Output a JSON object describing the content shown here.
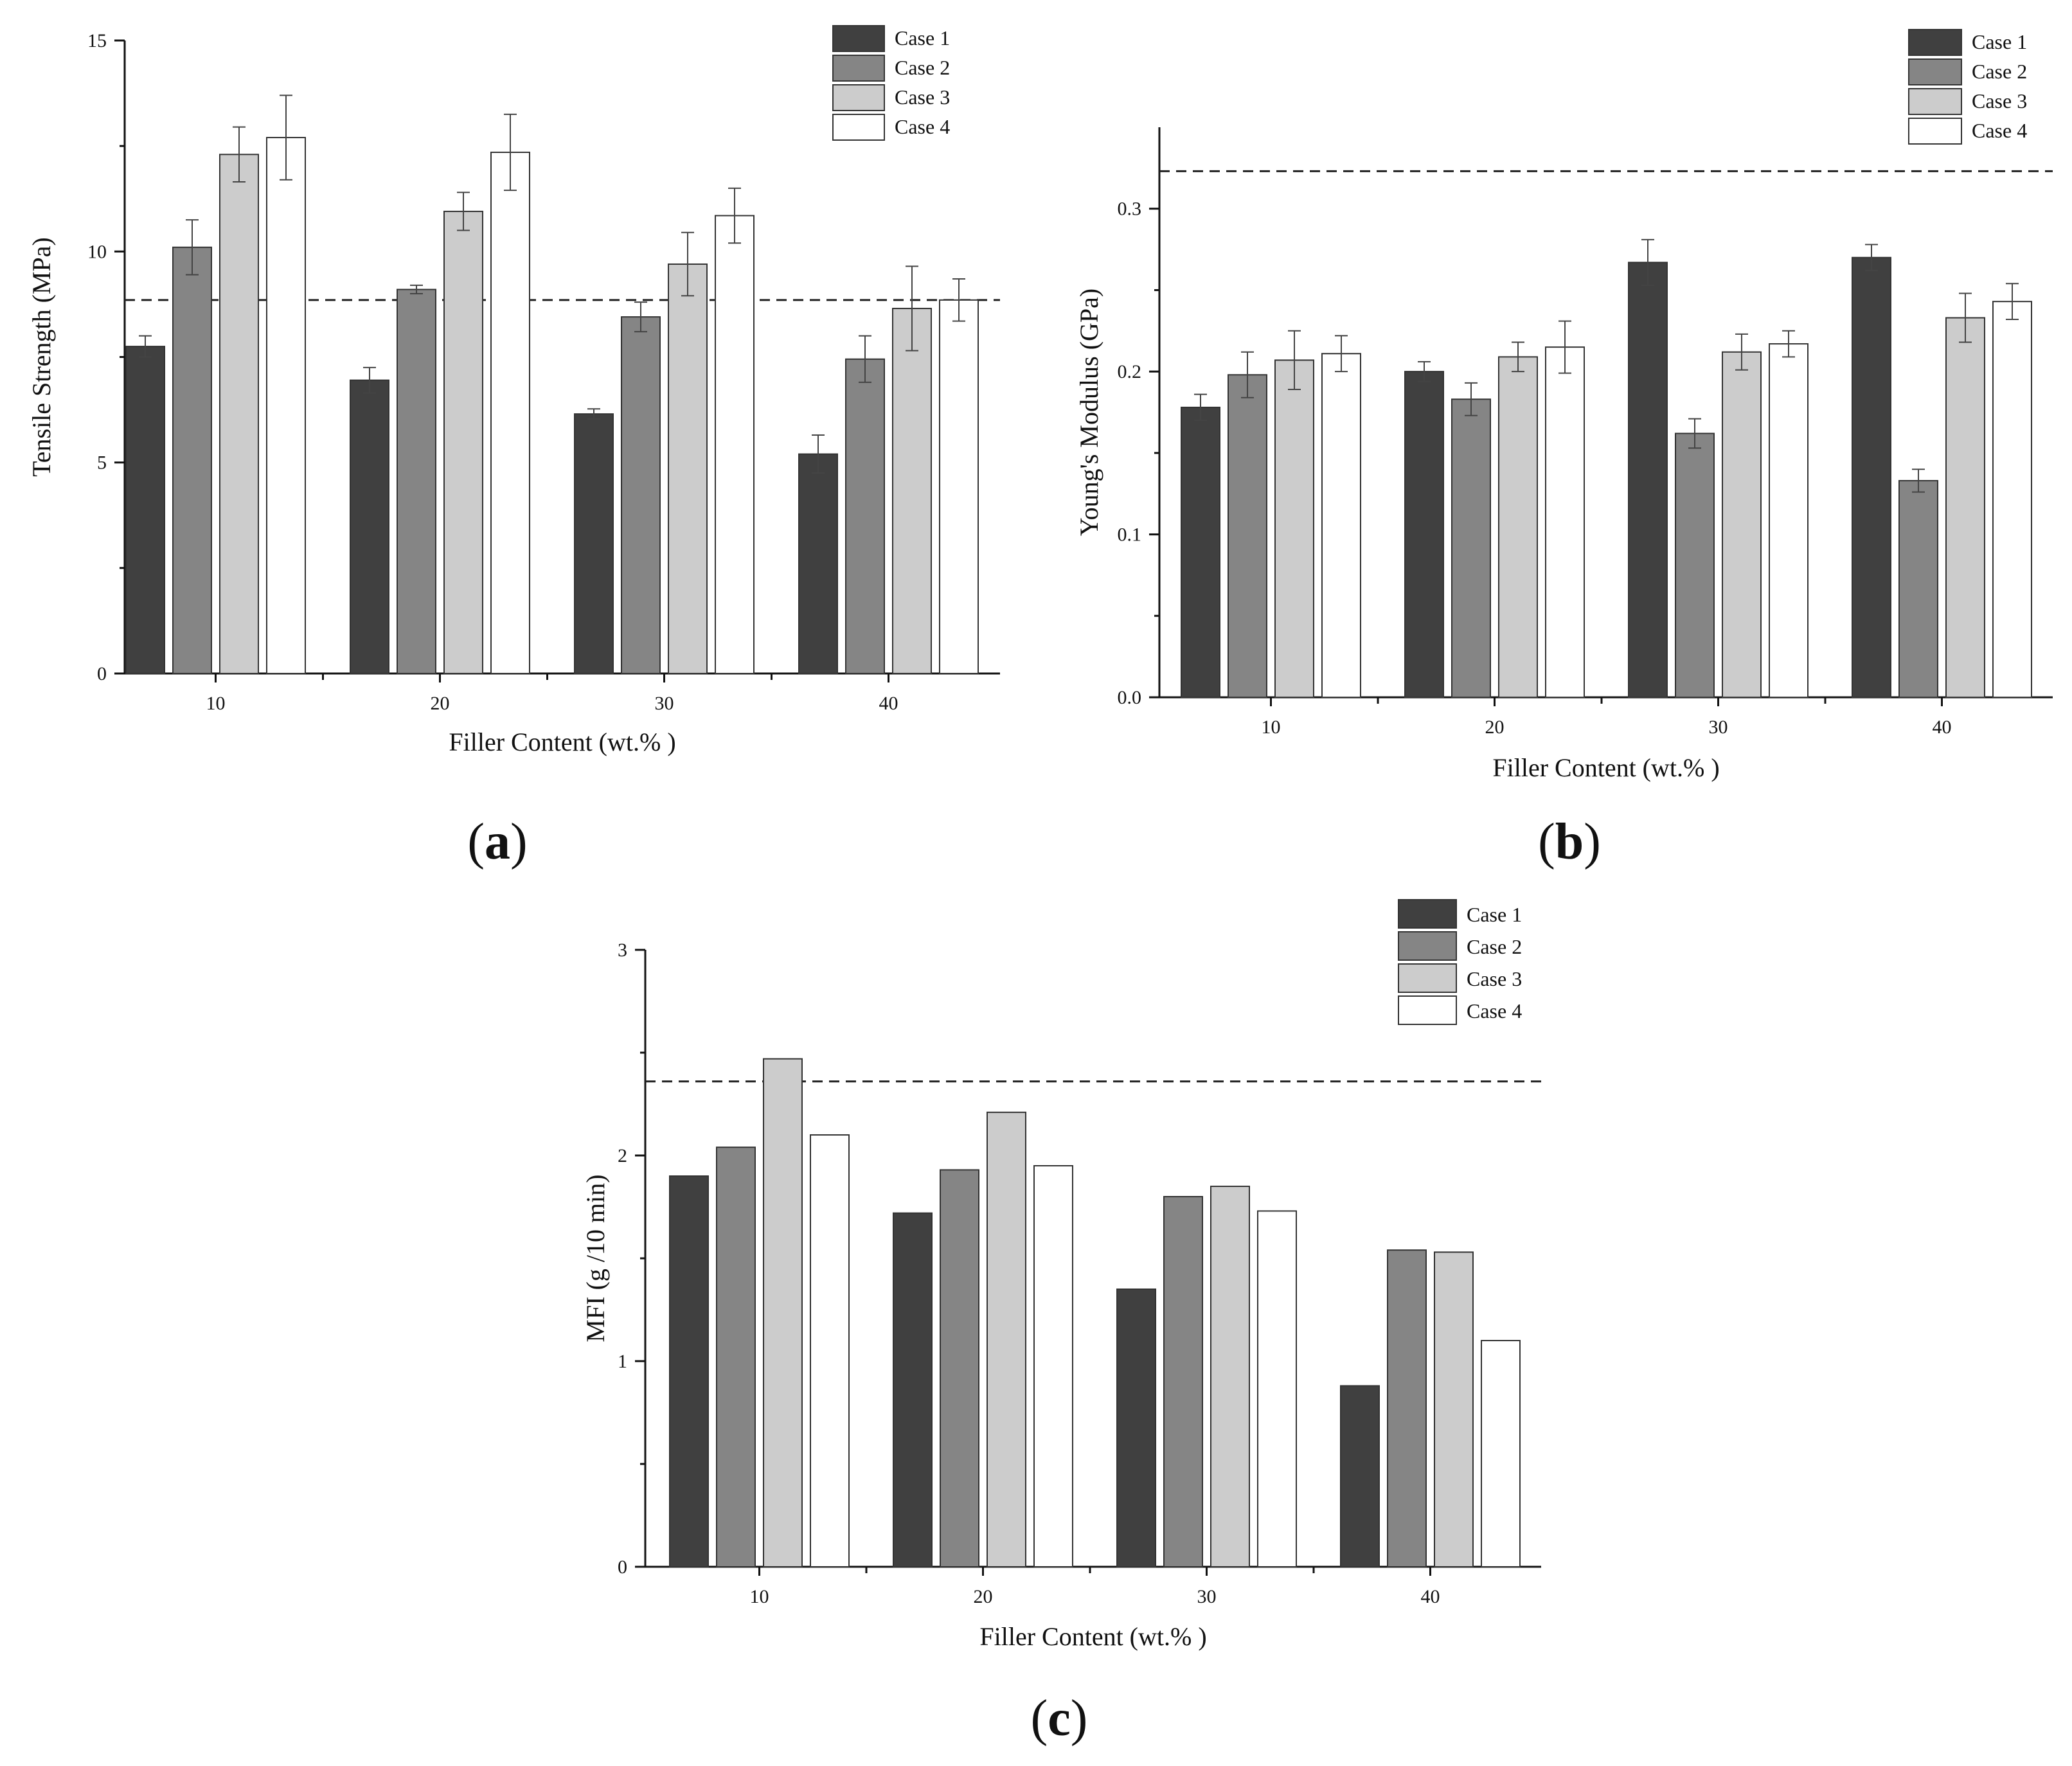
{
  "legend_labels": [
    "Case 1",
    "Case 2",
    "Case 3",
    "Case 4"
  ],
  "colors": {
    "case1": "#404040",
    "case2": "#858585",
    "case3": "#cccccc",
    "case4": "#ffffff",
    "axis": "#111111"
  },
  "chart_data": [
    {
      "type": "bar",
      "caption": "(a)",
      "caption_letter": "a",
      "xlabel": "Filler Content (wt.% )",
      "ylabel": "Tensile Strength (MPa)",
      "categories": [
        "10",
        "20",
        "30",
        "40"
      ],
      "ylim": [
        0,
        15
      ],
      "yticks": [
        0,
        5,
        10,
        15
      ],
      "ytick_labels": [
        "0",
        "5",
        "10",
        "15"
      ],
      "reference_line": 8.85,
      "series": [
        {
          "name": "Case 1",
          "values": [
            7.75,
            6.95,
            6.15,
            5.2
          ],
          "errors": [
            0.25,
            0.3,
            0.12,
            0.45
          ]
        },
        {
          "name": "Case 2",
          "values": [
            10.1,
            9.1,
            8.45,
            7.45
          ],
          "errors": [
            0.65,
            0.1,
            0.35,
            0.55
          ]
        },
        {
          "name": "Case 3",
          "values": [
            12.3,
            10.95,
            9.7,
            8.65
          ],
          "errors": [
            0.65,
            0.45,
            0.75,
            1.0
          ]
        },
        {
          "name": "Case 4",
          "values": [
            12.7,
            12.35,
            10.85,
            8.85
          ],
          "errors": [
            1.0,
            0.9,
            0.65,
            0.5
          ]
        }
      ]
    },
    {
      "type": "bar",
      "caption": "(b)",
      "caption_letter": "b",
      "xlabel": "Filler Content (wt.% )",
      "ylabel": "Young's Modulus (GPa)",
      "categories": [
        "10",
        "20",
        "30",
        "40"
      ],
      "ylim": [
        0,
        0.35
      ],
      "yticks": [
        0,
        0.1,
        0.2,
        0.3
      ],
      "ytick_labels": [
        "0.0",
        "0.1",
        "0.2",
        "0.3"
      ],
      "reference_line": 0.323,
      "series": [
        {
          "name": "Case 1",
          "values": [
            0.178,
            0.2,
            0.267,
            0.27
          ],
          "errors": [
            0.008,
            0.006,
            0.014,
            0.008
          ]
        },
        {
          "name": "Case 2",
          "values": [
            0.198,
            0.183,
            0.162,
            0.133
          ],
          "errors": [
            0.014,
            0.01,
            0.009,
            0.007
          ]
        },
        {
          "name": "Case 3",
          "values": [
            0.207,
            0.209,
            0.212,
            0.233
          ],
          "errors": [
            0.018,
            0.009,
            0.011,
            0.015
          ]
        },
        {
          "name": "Case 4",
          "values": [
            0.211,
            0.215,
            0.217,
            0.243
          ],
          "errors": [
            0.011,
            0.016,
            0.008,
            0.011
          ]
        }
      ]
    },
    {
      "type": "bar",
      "caption": "(c)",
      "caption_letter": "c",
      "xlabel": "Filler Content (wt.% )",
      "ylabel": "MFI (g /10 min)",
      "categories": [
        "10",
        "20",
        "30",
        "40"
      ],
      "ylim": [
        0,
        3
      ],
      "yticks": [
        0,
        1,
        2,
        3
      ],
      "ytick_labels": [
        "0",
        "1",
        "2",
        "3"
      ],
      "reference_line": 2.36,
      "series": [
        {
          "name": "Case 1",
          "values": [
            1.9,
            1.72,
            1.35,
            0.88
          ]
        },
        {
          "name": "Case 2",
          "values": [
            2.04,
            1.93,
            1.8,
            1.54
          ]
        },
        {
          "name": "Case 3",
          "values": [
            2.47,
            2.21,
            1.85,
            1.53
          ]
        },
        {
          "name": "Case 4",
          "values": [
            2.1,
            1.95,
            1.73,
            1.1
          ]
        }
      ]
    }
  ]
}
